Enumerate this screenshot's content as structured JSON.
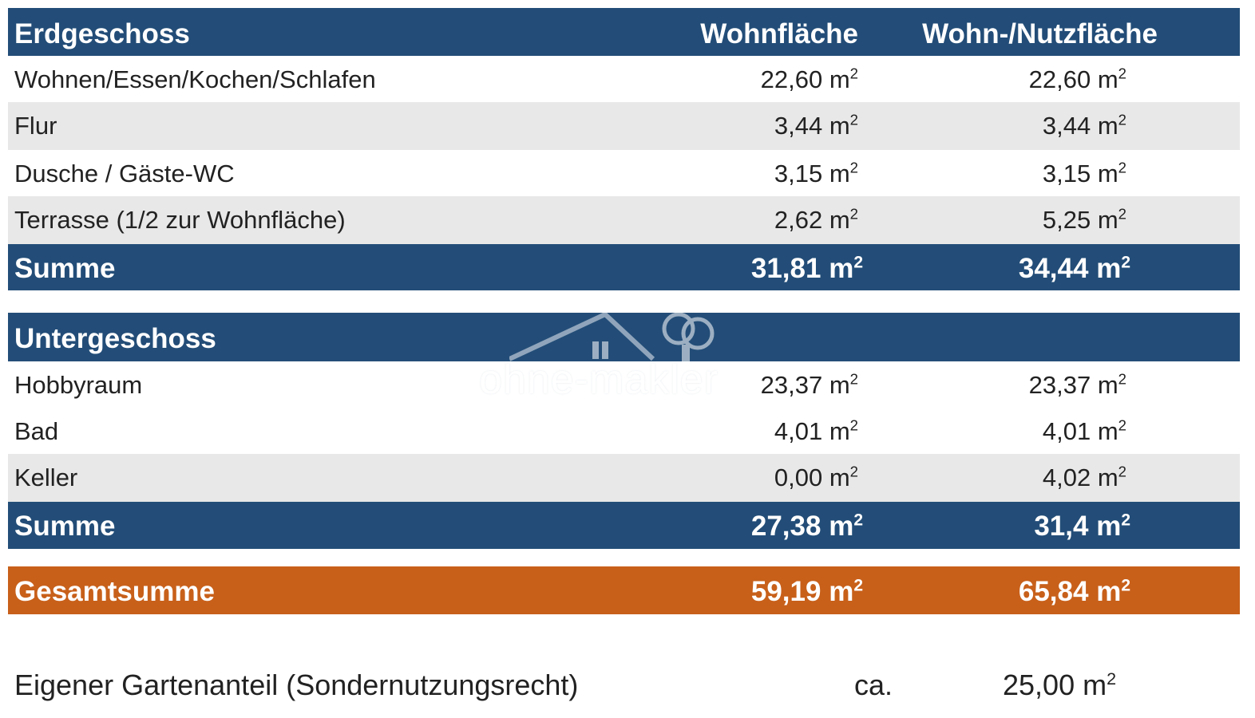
{
  "section1": {
    "header": {
      "name": "Erdgeschoss",
      "col1": "Wohnfläche",
      "col2": "Wohn-/Nutzfläche"
    },
    "rows": [
      {
        "name": "Wohnen/Essen/Kochen/Schlafen",
        "wohnflaeche": "22,60",
        "nutzflaeche": "22,60"
      },
      {
        "name": "Flur",
        "wohnflaeche": "3,44",
        "nutzflaeche": "3,44"
      },
      {
        "name": "Dusche / Gäste-WC",
        "wohnflaeche": "3,15",
        "nutzflaeche": "3,15"
      },
      {
        "name": "Terrasse (1/2 zur Wohnfläche)",
        "wohnflaeche": "2,62",
        "nutzflaeche": "5,25"
      }
    ],
    "sum": {
      "label": "Summe",
      "wohnflaeche": "31,81",
      "nutzflaeche": "34,44"
    }
  },
  "section2": {
    "header": {
      "name": "Untergeschoss"
    },
    "rows": [
      {
        "name": "Hobbyraum",
        "wohnflaeche": "23,37",
        "nutzflaeche": "23,37"
      },
      {
        "name": "Bad",
        "wohnflaeche": "4,01",
        "nutzflaeche": "4,01"
      },
      {
        "name": "Keller",
        "wohnflaeche": "0,00",
        "nutzflaeche": "4,02"
      }
    ],
    "sum": {
      "label": "Summe",
      "wohnflaeche": "27,38",
      "nutzflaeche": "31,4"
    }
  },
  "total": {
    "label": "Gesamtsumme",
    "wohnflaeche": "59,19",
    "nutzflaeche": "65,84"
  },
  "garden": {
    "label": "Eigener Gartenanteil (Sondernutzungsrecht)",
    "approx": "ca.",
    "value": "25,00"
  },
  "unit": "m",
  "unit_sup": "2",
  "watermark": {
    "text": "ohne-makler",
    "icon": "house-tree-logo"
  },
  "colors": {
    "header_blue": "#234d78",
    "total_orange": "#c8601a",
    "row_alt": "#e8e8e8"
  }
}
